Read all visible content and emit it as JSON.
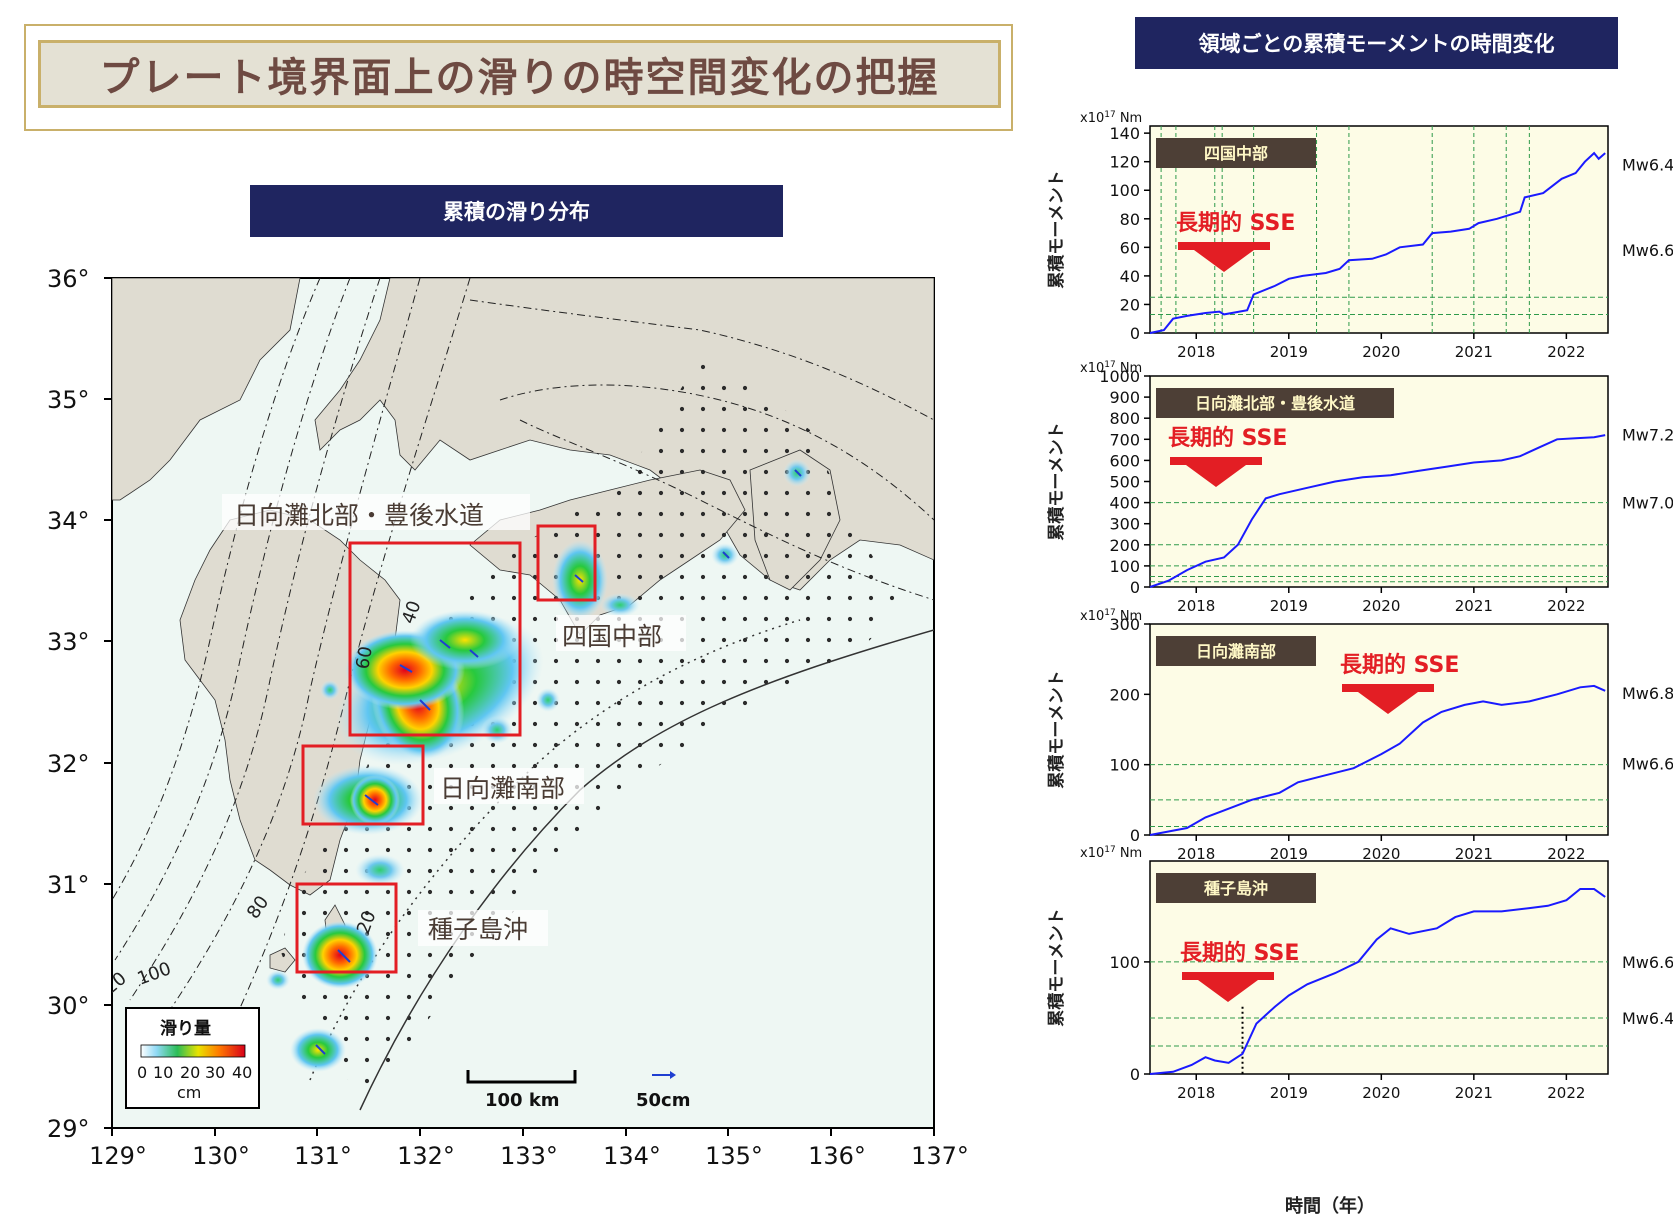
{
  "header": {
    "main_title": "プレート境界面上の滑りの時空間変化の把握",
    "map_section_title": "累積の滑り分布",
    "charts_section_title": "領域ごとの累積モーメントの時間変化"
  },
  "map": {
    "lat_labels": [
      "36°",
      "35°",
      "34°",
      "33°",
      "32°",
      "31°",
      "30°",
      "29°"
    ],
    "lon_labels": [
      "129°",
      "130°",
      "131°",
      "132°",
      "133°",
      "134°",
      "135°",
      "136°",
      "137°"
    ],
    "region_labels": {
      "hyuganada_north": "日向灘北部・豊後水道",
      "shikoku": "四国中部",
      "hyuganada_south": "日向灘南部",
      "tanegashima": "種子島沖"
    },
    "contour_labels": [
      "40",
      "60",
      "20",
      "80",
      "20",
      "100"
    ],
    "legend": {
      "title": "滑り量",
      "ticks": [
        "0",
        "10",
        "20",
        "30",
        "40"
      ],
      "unit": "cm"
    },
    "scale_bar": "100 km",
    "vector_scale": "50cm",
    "colors": {
      "land": "#dfdcd1",
      "sea": "#eef7f3",
      "box": "#e31e24",
      "vector": "#1f3fd1"
    }
  },
  "charts": {
    "y_unit": "x10",
    "y_unit_exp": "17",
    "y_unit_suffix": " Nm",
    "ylabel": "累積モーメント",
    "x_ticks": [
      "2018",
      "2019",
      "2020",
      "2021",
      "2022"
    ],
    "xlabel": "時間（年）",
    "sse_label": "長期的 SSE",
    "panels": [
      {
        "title": "四国中部",
        "y_ticks": [
          "0",
          "20",
          "40",
          "60",
          "80",
          "100",
          "120",
          "140"
        ],
        "mw": [
          "Mw6.6",
          "Mw6.4"
        ]
      },
      {
        "title": "日向灘北部・豊後水道",
        "y_ticks": [
          "0",
          "100",
          "200",
          "300",
          "400",
          "500",
          "600",
          "700",
          "800",
          "900",
          "1000"
        ],
        "mw": [
          "Mw7.2",
          "Mw7.0"
        ]
      },
      {
        "title": "日向灘南部",
        "y_ticks": [
          "0",
          "100",
          "200",
          "300"
        ],
        "mw": [
          "Mw6.8",
          "Mw6.6"
        ]
      },
      {
        "title": "種子島沖",
        "y_ticks": [
          "0",
          "100"
        ],
        "mw": [
          "Mw6.6",
          "Mw6.4"
        ]
      }
    ]
  },
  "chart_data": [
    {
      "type": "line",
      "title": "四国中部",
      "ylabel": "累積モーメント",
      "ylim": [
        0,
        145
      ],
      "xlim": [
        2017.5,
        2022.45
      ],
      "series": [
        {
          "values": [
            [
              2017.5,
              0
            ],
            [
              2017.65,
              2
            ],
            [
              2017.75,
              10
            ],
            [
              2017.9,
              12
            ],
            [
              2018.1,
              14
            ],
            [
              2018.25,
              15
            ],
            [
              2018.3,
              13
            ],
            [
              2018.55,
              16
            ],
            [
              2018.62,
              27
            ],
            [
              2018.85,
              33
            ],
            [
              2019.0,
              38
            ],
            [
              2019.15,
              40
            ],
            [
              2019.4,
              42
            ],
            [
              2019.55,
              45
            ],
            [
              2019.65,
              51
            ],
            [
              2019.9,
              52
            ],
            [
              2020.05,
              55
            ],
            [
              2020.2,
              60
            ],
            [
              2020.45,
              62
            ],
            [
              2020.55,
              70
            ],
            [
              2020.75,
              71
            ],
            [
              2020.95,
              73
            ],
            [
              2021.05,
              77
            ],
            [
              2021.25,
              80
            ],
            [
              2021.5,
              85
            ],
            [
              2021.55,
              95
            ],
            [
              2021.75,
              98
            ],
            [
              2021.95,
              108
            ],
            [
              2022.1,
              112
            ],
            [
              2022.2,
              120
            ],
            [
              2022.3,
              126
            ],
            [
              2022.35,
              122
            ],
            [
              2022.42,
              126
            ]
          ]
        }
      ],
      "hlines": [
        13,
        25
      ]
    },
    {
      "type": "line",
      "title": "日向灘北部・豊後水道",
      "ylabel": "累積モーメント",
      "ylim": [
        0,
        1000
      ],
      "xlim": [
        2017.5,
        2022.45
      ],
      "series": [
        {
          "values": [
            [
              2017.5,
              0
            ],
            [
              2017.7,
              30
            ],
            [
              2017.9,
              80
            ],
            [
              2018.1,
              120
            ],
            [
              2018.3,
              140
            ],
            [
              2018.45,
              200
            ],
            [
              2018.6,
              320
            ],
            [
              2018.75,
              420
            ],
            [
              2018.9,
              440
            ],
            [
              2019.2,
              470
            ],
            [
              2019.5,
              500
            ],
            [
              2019.8,
              520
            ],
            [
              2020.1,
              530
            ],
            [
              2020.4,
              550
            ],
            [
              2020.7,
              570
            ],
            [
              2021.0,
              590
            ],
            [
              2021.3,
              600
            ],
            [
              2021.5,
              620
            ],
            [
              2021.7,
              660
            ],
            [
              2021.9,
              700
            ],
            [
              2022.1,
              705
            ],
            [
              2022.3,
              710
            ],
            [
              2022.42,
              720
            ]
          ]
        }
      ],
      "hlines": [
        25,
        50,
        100,
        200,
        400
      ]
    },
    {
      "type": "line",
      "title": "日向灘南部",
      "ylabel": "累積モーメント",
      "ylim": [
        0,
        300
      ],
      "xlim": [
        2017.5,
        2022.45
      ],
      "series": [
        {
          "values": [
            [
              2017.5,
              0
            ],
            [
              2017.7,
              5
            ],
            [
              2017.9,
              10
            ],
            [
              2018.1,
              25
            ],
            [
              2018.3,
              35
            ],
            [
              2018.6,
              50
            ],
            [
              2018.9,
              60
            ],
            [
              2019.1,
              75
            ],
            [
              2019.4,
              85
            ],
            [
              2019.7,
              95
            ],
            [
              2020.0,
              115
            ],
            [
              2020.2,
              130
            ],
            [
              2020.45,
              160
            ],
            [
              2020.65,
              175
            ],
            [
              2020.9,
              185
            ],
            [
              2021.1,
              190
            ],
            [
              2021.3,
              185
            ],
            [
              2021.6,
              190
            ],
            [
              2021.9,
              200
            ],
            [
              2022.15,
              210
            ],
            [
              2022.3,
              212
            ],
            [
              2022.42,
              205
            ]
          ]
        }
      ],
      "hlines": [
        12,
        50,
        100
      ]
    },
    {
      "type": "line",
      "title": "種子島沖",
      "ylabel": "累積モーメント",
      "ylim": [
        0,
        190
      ],
      "xlim": [
        2017.5,
        2022.45
      ],
      "series": [
        {
          "values": [
            [
              2017.5,
              0
            ],
            [
              2017.75,
              2
            ],
            [
              2017.95,
              8
            ],
            [
              2018.1,
              15
            ],
            [
              2018.2,
              12
            ],
            [
              2018.35,
              10
            ],
            [
              2018.5,
              18
            ],
            [
              2018.65,
              45
            ],
            [
              2018.85,
              60
            ],
            [
              2019.0,
              70
            ],
            [
              2019.2,
              80
            ],
            [
              2019.5,
              90
            ],
            [
              2019.75,
              100
            ],
            [
              2019.95,
              120
            ],
            [
              2020.1,
              130
            ],
            [
              2020.3,
              125
            ],
            [
              2020.6,
              130
            ],
            [
              2020.8,
              140
            ],
            [
              2021.0,
              145
            ],
            [
              2021.3,
              145
            ],
            [
              2021.6,
              148
            ],
            [
              2021.8,
              150
            ],
            [
              2022.0,
              155
            ],
            [
              2022.15,
              165
            ],
            [
              2022.3,
              165
            ],
            [
              2022.42,
              158
            ]
          ]
        }
      ],
      "hlines": [
        25,
        50,
        100
      ]
    }
  ]
}
